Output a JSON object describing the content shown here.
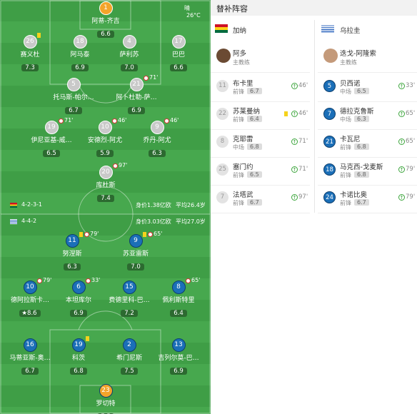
{
  "pitch": {
    "weather": "晴",
    "temperature": "26°C",
    "home": {
      "formation": "4-2-3-1",
      "value": "身价1.38亿欧",
      "age": "平均26.4岁",
      "players": [
        {
          "num": "1",
          "name": "阿蒂-齐吉",
          "rating": "6.6",
          "gk": true
        },
        {
          "num": "26",
          "name": "赛义杜",
          "rating": "7.3",
          "card": true
        },
        {
          "num": "18",
          "name": "阿马泰",
          "rating": "6.9"
        },
        {
          "num": "4",
          "name": "萨利苏",
          "rating": "7.0"
        },
        {
          "num": "17",
          "name": "巴巴",
          "rating": "6.6"
        },
        {
          "num": "5",
          "name": "托马斯-帕尔…",
          "rating": "6.7"
        },
        {
          "num": "21",
          "name": "阿卜杜勒-萨…",
          "rating": "6.9",
          "sub": "71'"
        },
        {
          "num": "19",
          "name": "伊尼亚基-威…",
          "rating": "6.5",
          "sub": "71'"
        },
        {
          "num": "10",
          "name": "安德烈-阿尤",
          "rating": "5.9",
          "sub": "46'"
        },
        {
          "num": "9",
          "name": "乔丹-阿尤",
          "rating": "6.3",
          "sub": "46'"
        },
        {
          "num": "20",
          "name": "库杜斯",
          "rating": "7.4",
          "sub": "97'"
        }
      ]
    },
    "away": {
      "formation": "4-4-2",
      "value": "身价3.03亿欧",
      "age": "平均27.0岁",
      "players": [
        {
          "num": "11",
          "name": "努涅斯",
          "rating": "6.3",
          "card": true,
          "sub": "79'"
        },
        {
          "num": "9",
          "name": "苏亚雷斯",
          "rating": "7.0",
          "card": true,
          "sub": "65'"
        },
        {
          "num": "10",
          "name": "德阿拉斯卡…",
          "rating": "8.6",
          "sub": "79'",
          "star": true
        },
        {
          "num": "6",
          "name": "本坦库尔",
          "rating": "6.9",
          "sub": "33'"
        },
        {
          "num": "15",
          "name": "费德里科-巴…",
          "rating": "7.2"
        },
        {
          "num": "8",
          "name": "佩利斯特里",
          "rating": "6.4",
          "sub": "65'"
        },
        {
          "num": "16",
          "name": "马蒂亚斯-奥…",
          "rating": "6.7"
        },
        {
          "num": "19",
          "name": "科茨",
          "rating": "6.8",
          "card": true
        },
        {
          "num": "2",
          "name": "希门尼斯",
          "rating": "7.5"
        },
        {
          "num": "13",
          "name": "吉列尔莫-巴…",
          "rating": "6.9"
        },
        {
          "num": "23",
          "name": "罗切特",
          "rating": "7.5",
          "gk": true
        }
      ]
    }
  },
  "subs": {
    "title": "替补阵容",
    "home": {
      "team": "加纳",
      "coach": "阿多",
      "coach_role": "主教练",
      "players": [
        {
          "num": "11",
          "name": "布卡里",
          "pos": "前锋",
          "rating": "6.7",
          "min": "46'"
        },
        {
          "num": "22",
          "name": "苏莱曼纳",
          "pos": "前锋",
          "rating": "6.4",
          "min": "46'",
          "card": true
        },
        {
          "num": "8",
          "name": "克耶雷",
          "pos": "中场",
          "rating": "6.8",
          "min": "71'"
        },
        {
          "num": "25",
          "name": "塞门约",
          "pos": "前锋",
          "rating": "6.5",
          "min": "71'"
        },
        {
          "num": "7",
          "name": "法塔武",
          "pos": "前锋",
          "rating": "6.7",
          "min": "97'"
        }
      ]
    },
    "away": {
      "team": "乌拉圭",
      "coach": "迭戈-阿隆索",
      "coach_role": "主教练",
      "players": [
        {
          "num": "5",
          "name": "贝西诺",
          "pos": "中场",
          "rating": "6.5",
          "min": "33'"
        },
        {
          "num": "7",
          "name": "德拉克鲁斯",
          "pos": "中场",
          "rating": "6.3",
          "min": "65'"
        },
        {
          "num": "21",
          "name": "卡瓦尼",
          "pos": "前锋",
          "rating": "6.8",
          "min": "65'"
        },
        {
          "num": "18",
          "name": "马克西-戈麦斯",
          "pos": "前锋",
          "rating": "6.8",
          "min": "79'"
        },
        {
          "num": "24",
          "name": "卡诺比奥",
          "pos": "前锋",
          "rating": "6.7",
          "min": "79'"
        }
      ]
    }
  }
}
